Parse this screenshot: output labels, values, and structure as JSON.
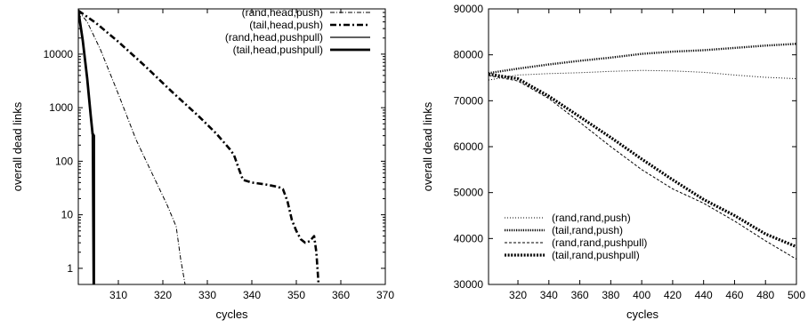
{
  "chart_data": [
    {
      "type": "line",
      "title": "",
      "xlabel": "cycles",
      "ylabel": "overall dead links",
      "xlim": [
        301,
        370
      ],
      "ylim": [
        0.5,
        70000
      ],
      "yscale": "log",
      "xticks": [
        310,
        320,
        330,
        340,
        350,
        360,
        370
      ],
      "yticks": [
        1,
        10,
        100,
        1000,
        10000
      ],
      "ytick_labels": [
        "1",
        "10",
        "100",
        "1000",
        "10000"
      ],
      "grid": false,
      "legend_position": "top-right",
      "series": [
        {
          "name": "(rand,head,push)",
          "style": "dashdot-thin",
          "x": [
            301,
            303,
            306,
            310,
            314,
            318,
            321,
            323,
            324,
            325
          ],
          "y": [
            65000,
            40000,
            12000,
            1800,
            250,
            50,
            15,
            6,
            1.5,
            0.5
          ]
        },
        {
          "name": "(tail,head,push)",
          "style": "dashdot-thick",
          "x": [
            301,
            305,
            310,
            316,
            322,
            328,
            332,
            335,
            336,
            337,
            338,
            340,
            343,
            346,
            347,
            348,
            349,
            350,
            351,
            352,
            353,
            354,
            354.5,
            355
          ],
          "y": [
            65000,
            38000,
            17000,
            6000,
            2000,
            700,
            330,
            170,
            130,
            75,
            45,
            40,
            37,
            33,
            30,
            18,
            8,
            5,
            3.5,
            3,
            3.2,
            4,
            2,
            0.5
          ]
        },
        {
          "name": "(rand,head,pushpull)",
          "style": "solid-thin",
          "x": [
            301,
            302,
            303,
            303.8,
            304.1,
            304.3
          ],
          "y": [
            70000,
            20000,
            4000,
            800,
            300,
            0.5
          ]
        },
        {
          "name": "(tail,head,pushpull)",
          "style": "solid-thick",
          "x": [
            301,
            302,
            303,
            303.8,
            304.2,
            304.5,
            304.5
          ],
          "y": [
            65000,
            18000,
            3500,
            700,
            330,
            300,
            0.5
          ]
        }
      ]
    },
    {
      "type": "line",
      "title": "",
      "xlabel": "cycles",
      "ylabel": "overall dead links",
      "xlim": [
        301,
        500
      ],
      "ylim": [
        30000,
        90000
      ],
      "xticks": [
        320,
        340,
        360,
        380,
        400,
        420,
        440,
        460,
        480,
        500
      ],
      "yticks": [
        30000,
        40000,
        50000,
        60000,
        70000,
        80000,
        90000
      ],
      "grid": false,
      "legend_position": "bottom-left",
      "series": [
        {
          "name": "(rand,rand,push)",
          "style": "dotted-thin",
          "x": [
            301,
            320,
            340,
            360,
            380,
            400,
            420,
            440,
            460,
            480,
            500
          ],
          "y": [
            74500,
            75600,
            75900,
            76100,
            76400,
            76600,
            76500,
            76200,
            75600,
            75100,
            74800
          ]
        },
        {
          "name": "(tail,rand,push)",
          "style": "dotted-thick",
          "x": [
            301,
            320,
            340,
            360,
            380,
            400,
            420,
            440,
            460,
            480,
            500
          ],
          "y": [
            76000,
            77000,
            77900,
            78700,
            79400,
            80200,
            80700,
            81000,
            81500,
            82000,
            82400
          ]
        },
        {
          "name": "(rand,rand,pushpull)",
          "style": "dashed-thin",
          "x": [
            301,
            320,
            340,
            360,
            380,
            400,
            420,
            440,
            460,
            480,
            500
          ],
          "y": [
            75500,
            74300,
            70500,
            65300,
            60000,
            55000,
            50800,
            47700,
            43800,
            39500,
            35500
          ]
        },
        {
          "name": "(tail,rand,pushpull)",
          "style": "dotted-heavy",
          "x": [
            301,
            320,
            340,
            360,
            380,
            400,
            420,
            440,
            460,
            480,
            500
          ],
          "y": [
            75800,
            74800,
            71000,
            66500,
            62000,
            57300,
            52800,
            48500,
            45000,
            41000,
            38200
          ]
        }
      ]
    }
  ]
}
